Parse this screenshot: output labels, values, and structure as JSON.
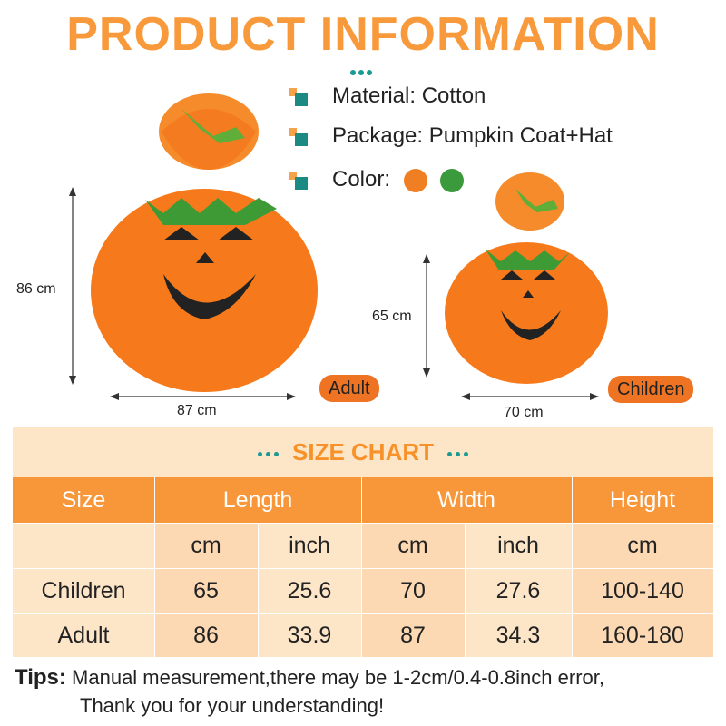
{
  "title": "PRODUCT INFORMATION",
  "features": {
    "material": "Material: Cotton",
    "package": "Package: Pumpkin Coat+Hat",
    "color_label": "Color:",
    "colors": [
      "#f07f24",
      "#3b9a3b"
    ]
  },
  "adult": {
    "height": "86 cm",
    "width": "87 cm",
    "badge": "Adult"
  },
  "children": {
    "height": "65 cm",
    "width": "70 cm",
    "badge": "Children"
  },
  "size_chart": {
    "title": "SIZE CHART",
    "headers": [
      "Size",
      "Length",
      "Width",
      "Height"
    ],
    "units": [
      "",
      "cm",
      "inch",
      "cm",
      "inch",
      "cm"
    ],
    "rows": [
      [
        "Children",
        "65",
        "25.6",
        "70",
        "27.6",
        "100-140"
      ],
      [
        "Adult",
        "86",
        "33.9",
        "87",
        "34.3",
        "160-180"
      ]
    ]
  },
  "tips": {
    "label": "Tips:",
    "line1": "Manual measurement,there may be 1-2cm/0.4-0.8inch error,",
    "line2": "Thank you for your understanding!"
  },
  "accent_colors": {
    "orange": "#f89a3b",
    "teal": "#1a9a92",
    "table_header": "#f8963a"
  }
}
